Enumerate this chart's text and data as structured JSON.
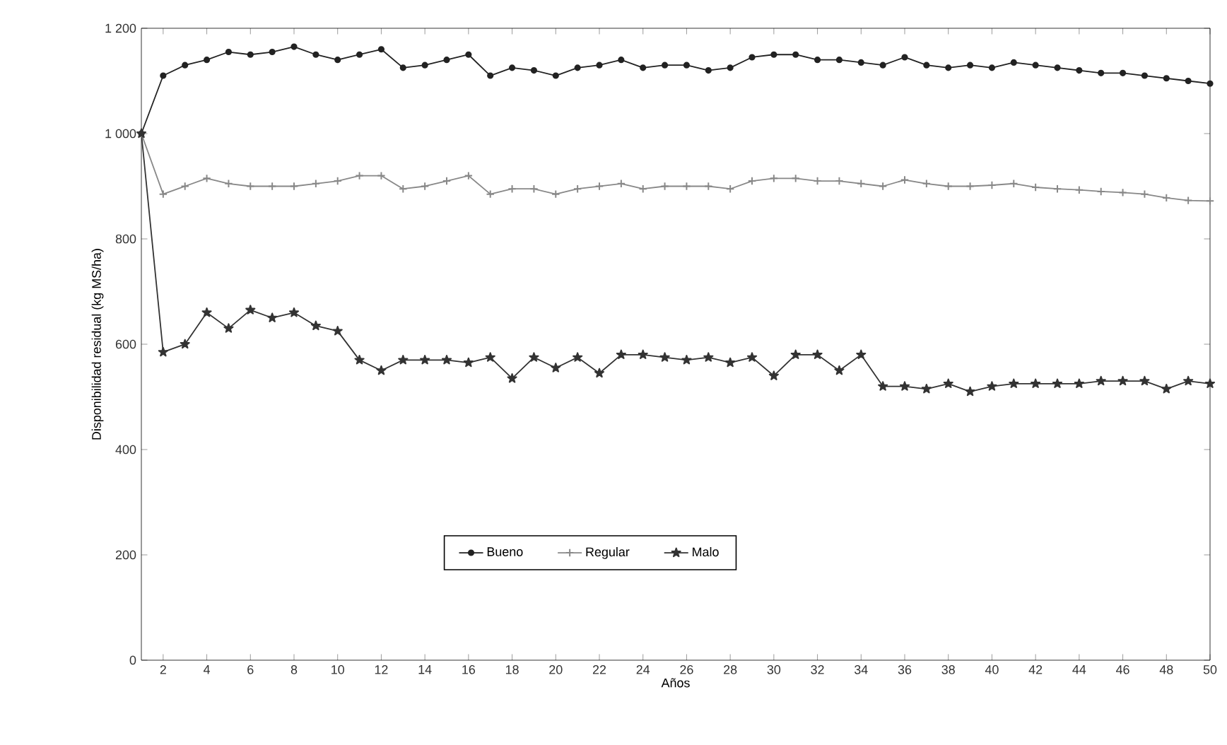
{
  "chart_data": {
    "type": "line",
    "xlabel": "Años",
    "ylabel": "Disponibilidad residual (kg MS/ha)",
    "x": [
      1,
      2,
      3,
      4,
      5,
      6,
      7,
      8,
      9,
      10,
      11,
      12,
      13,
      14,
      15,
      16,
      17,
      18,
      19,
      20,
      21,
      22,
      23,
      24,
      25,
      26,
      27,
      28,
      29,
      30,
      31,
      32,
      33,
      34,
      35,
      36,
      37,
      38,
      39,
      40,
      41,
      42,
      43,
      44,
      45,
      46,
      47,
      48,
      49,
      50
    ],
    "xlim": [
      1,
      50
    ],
    "xticks": [
      2,
      4,
      6,
      8,
      10,
      12,
      14,
      16,
      18,
      20,
      22,
      24,
      26,
      28,
      30,
      32,
      34,
      36,
      38,
      40,
      42,
      44,
      46,
      48,
      50
    ],
    "ylim": [
      0,
      1200
    ],
    "yticks": [
      0,
      200,
      400,
      600,
      800,
      {
        "value": 1000,
        "label": "1 000"
      },
      {
        "value": 1200,
        "label": "1 200"
      }
    ],
    "grid": false,
    "legend": "bottom",
    "line_style": "solid",
    "series": [
      {
        "name": "Bueno",
        "color": "#222222",
        "marker": "circle",
        "values": [
          1000,
          1110,
          1130,
          1140,
          1155,
          1150,
          1155,
          1165,
          1150,
          1140,
          1150,
          1160,
          1125,
          1130,
          1140,
          1150,
          1110,
          1125,
          1120,
          1110,
          1125,
          1130,
          1140,
          1125,
          1130,
          1130,
          1120,
          1125,
          1145,
          1150,
          1150,
          1140,
          1140,
          1135,
          1130,
          1145,
          1130,
          1125,
          1130,
          1125,
          1135,
          1130,
          1125,
          1120,
          1115,
          1115,
          1110,
          1105,
          1100,
          1095
        ]
      },
      {
        "name": "Regular",
        "color": "#888888",
        "marker": "cross",
        "values": [
          1000,
          885,
          900,
          915,
          905,
          900,
          900,
          900,
          905,
          910,
          920,
          920,
          895,
          900,
          910,
          920,
          885,
          895,
          895,
          885,
          895,
          900,
          905,
          895,
          900,
          900,
          900,
          895,
          910,
          915,
          915,
          910,
          910,
          905,
          900,
          912,
          905,
          900,
          900,
          902,
          905,
          898,
          895,
          893,
          890,
          888,
          885,
          878,
          873,
          872
        ]
      },
      {
        "name": "Malo",
        "color": "#333333",
        "marker": "star",
        "values": [
          1000,
          585,
          600,
          660,
          630,
          665,
          650,
          660,
          635,
          625,
          570,
          550,
          570,
          570,
          570,
          565,
          575,
          535,
          575,
          555,
          575,
          545,
          580,
          580,
          575,
          570,
          575,
          565,
          575,
          540,
          580,
          580,
          550,
          580,
          520,
          520,
          515,
          525,
          510,
          520,
          525,
          525,
          525,
          525,
          530,
          530,
          530,
          515,
          530,
          525
        ]
      }
    ]
  }
}
